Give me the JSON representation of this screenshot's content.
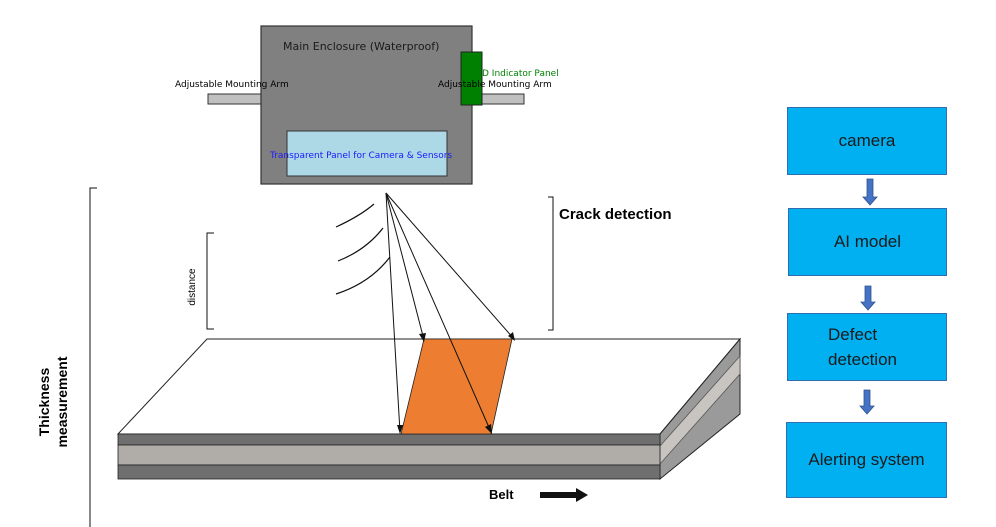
{
  "enclosure": {
    "title": "Main Enclosure (Waterproof)",
    "indicator_label": "D Indicator Panel",
    "left_arm_label": "Adjustable Mounting Arm",
    "right_arm_label": "Adjustable Mounting Arm",
    "window_label": "Transparent Panel for Camera & Sensors"
  },
  "labels": {
    "crack_detection": "Crack detection",
    "distance": "distance",
    "thickness_line1": "Thickness",
    "thickness_line2": "measurement",
    "belt": "Belt"
  },
  "flow": {
    "steps": [
      {
        "line1": "camera",
        "line2": ""
      },
      {
        "line1": "AI model",
        "line2": ""
      },
      {
        "line1": "Defect",
        "line2": "detection"
      },
      {
        "line1": "Alerting system",
        "line2": ""
      }
    ]
  },
  "colors": {
    "enclosure": "#808080",
    "window": "#add8e6",
    "indicator": "#008000",
    "crack": "#ed7d31",
    "flow_box": "#00b0f0",
    "flow_arrow": "#4472c4",
    "belt_dark": "#6f6f6f",
    "belt_mid": "#b0aca8"
  }
}
